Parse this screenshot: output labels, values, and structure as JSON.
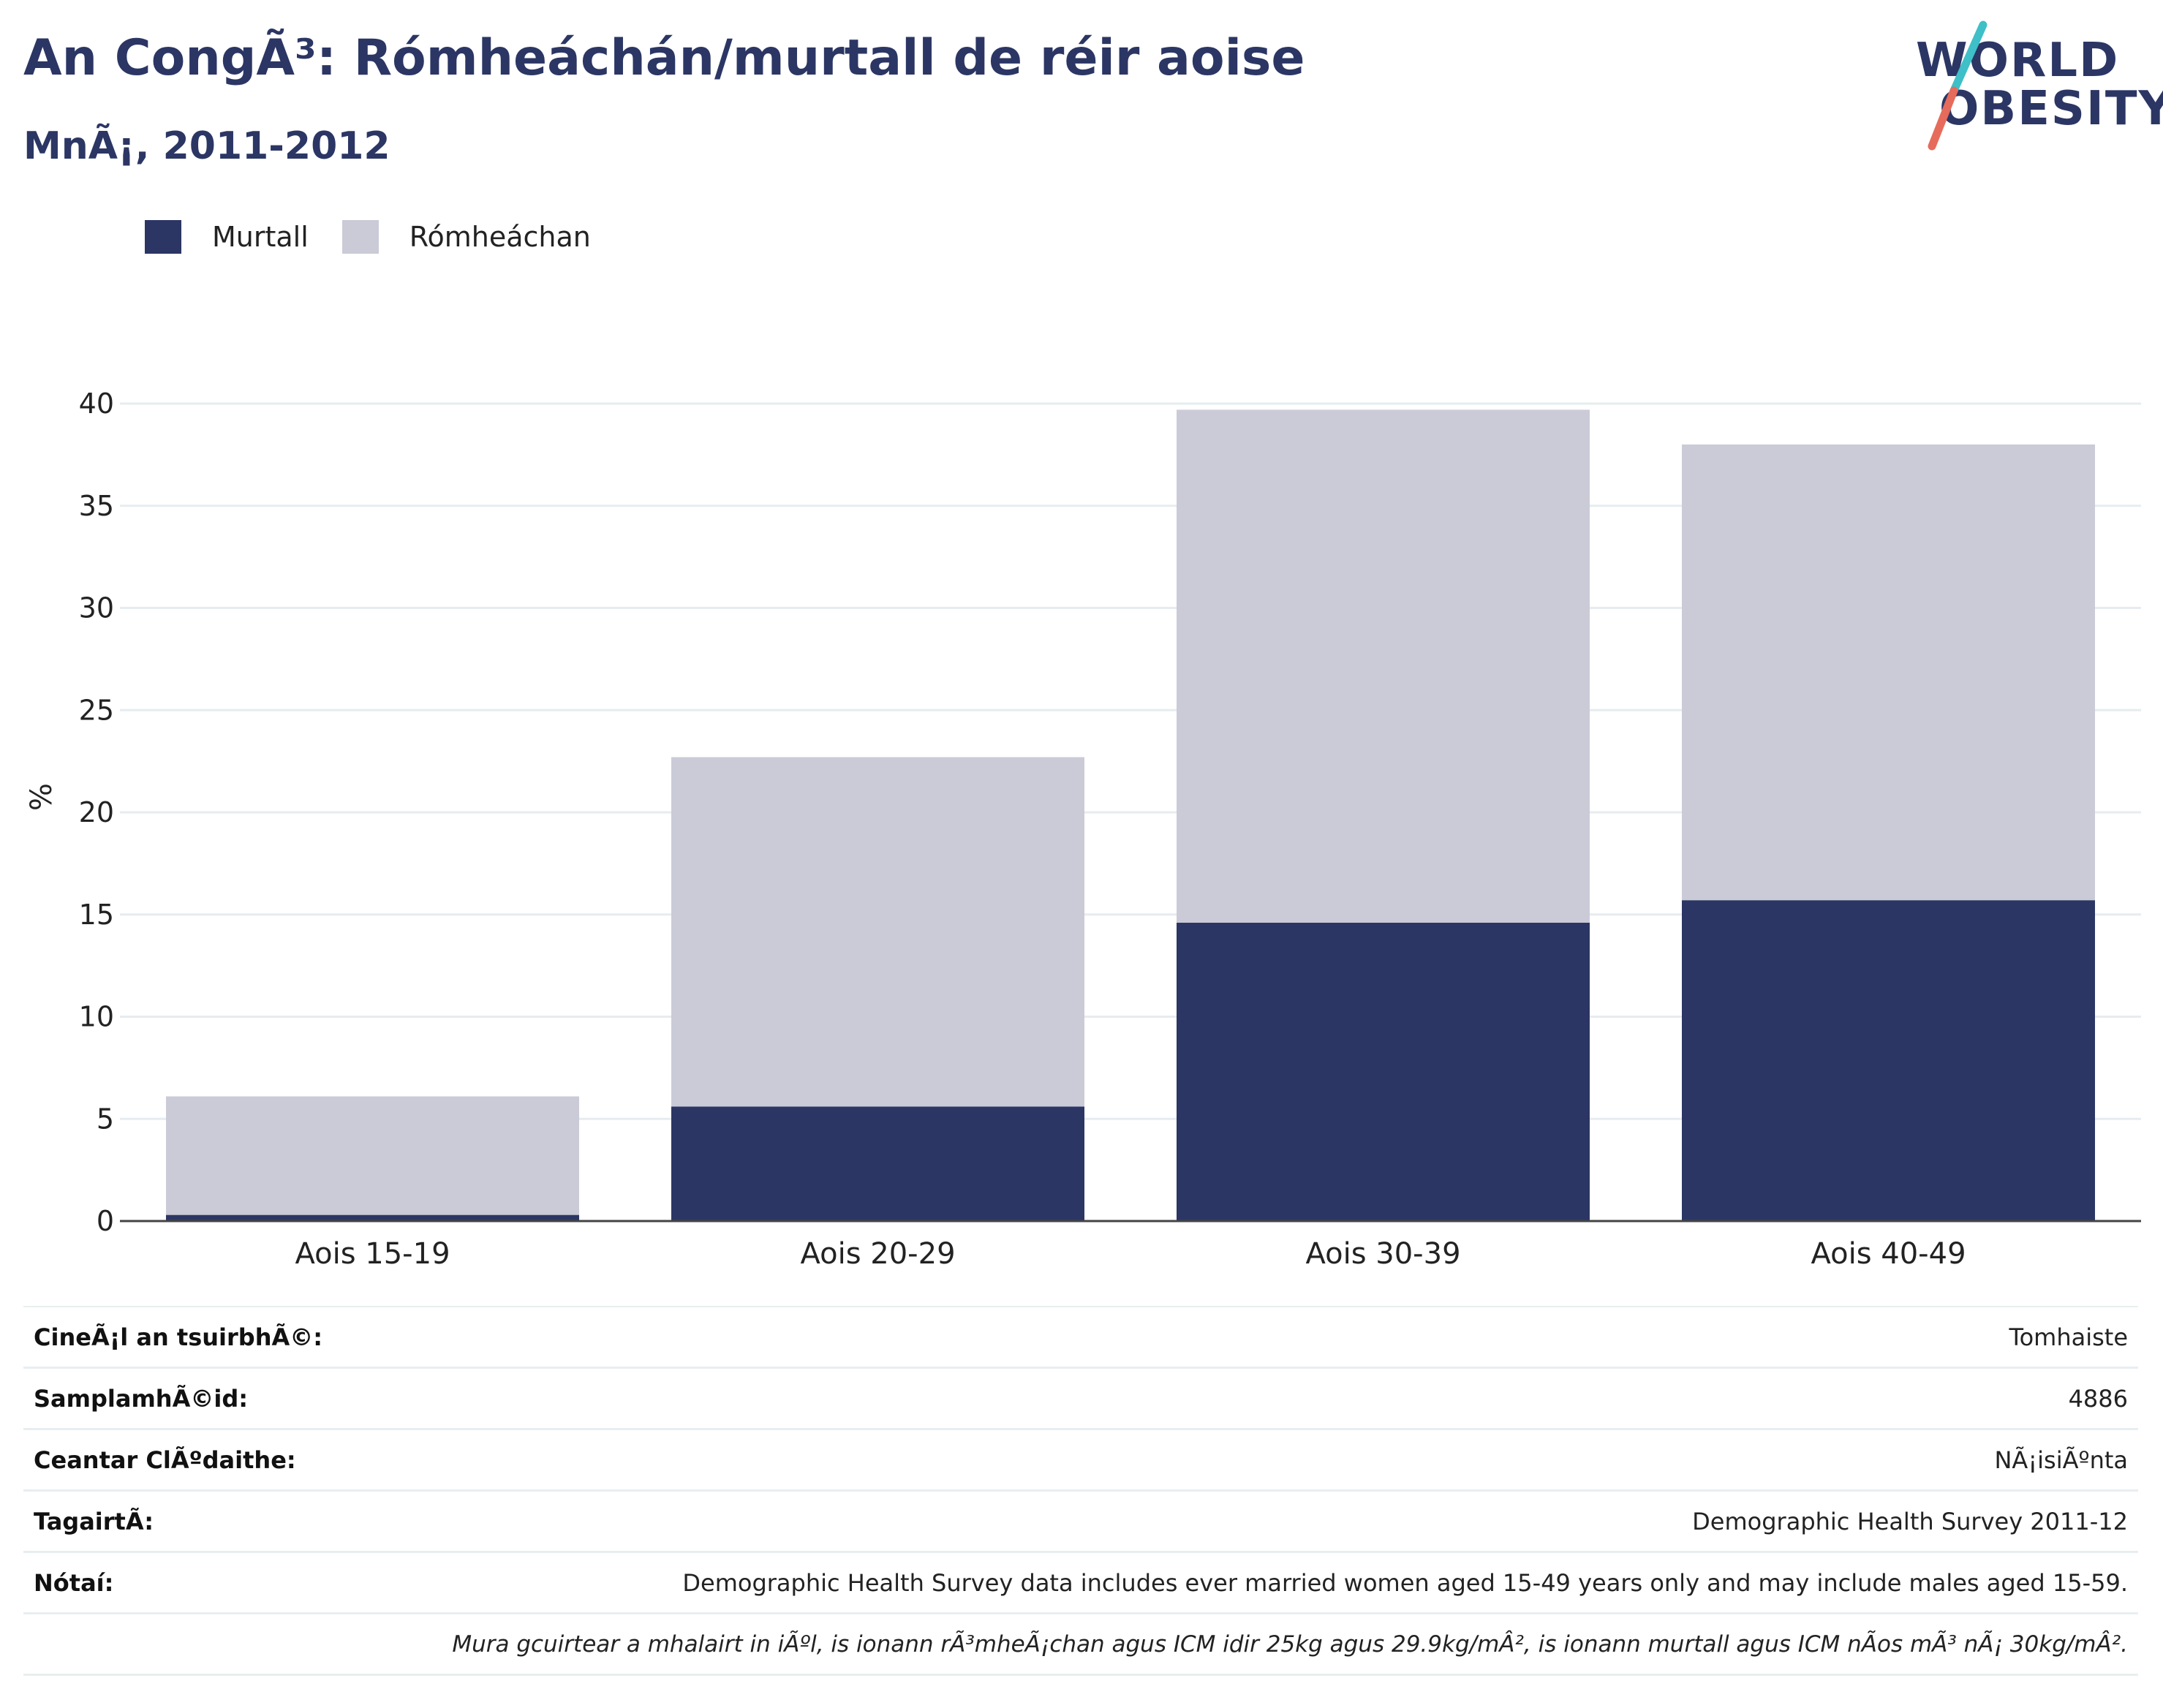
{
  "header": {
    "title": "An CongÃ³: Rómheáchán/murtall de réir aoise",
    "subtitle": "MnÃ¡, 2011-2012"
  },
  "logo": {
    "line1": "WORLD",
    "line2": "OBESITY"
  },
  "legend": {
    "items": [
      {
        "label": "Murtall",
        "color": "#2b3664"
      },
      {
        "label": "Rómheáchan",
        "color": "#cacbd7"
      }
    ]
  },
  "chart_data": {
    "type": "bar",
    "stacked": true,
    "categories": [
      "Aois 15-19",
      "Aois 20-29",
      "Aois 30-39",
      "Aois 40-49"
    ],
    "series": [
      {
        "name": "Murtall",
        "color": "#2b3664",
        "values": [
          0.3,
          5.6,
          14.6,
          15.7
        ]
      },
      {
        "name": "Rómheáchan",
        "color": "#cacbd7",
        "values": [
          5.8,
          17.1,
          25.1,
          22.3
        ]
      }
    ],
    "ylabel": "%",
    "xlabel": "",
    "ylim": [
      0,
      40
    ],
    "yticks": [
      0,
      5,
      10,
      15,
      20,
      25,
      30,
      35,
      40
    ],
    "grid": true,
    "legend_position": "top-left"
  },
  "info_table": {
    "rows": [
      {
        "label": "CineÃ¡l an tsuirbhÃ©:",
        "value": "Tomhaiste"
      },
      {
        "label": "SamplamhÃ©id:",
        "value": "4886"
      },
      {
        "label": "Ceantar ClÃºdaithe:",
        "value": "NÃ¡isiÃºnta"
      },
      {
        "label": "TagairtÃ:",
        "value": "Demographic Health Survey 2011-12"
      },
      {
        "label": "Nótaí:",
        "value": "Demographic Health Survey data includes ever married women aged 15-49 years only and may include males aged 15-59."
      }
    ],
    "footnote": "Mura gcuirtear a mhalairt in iÃºl, is ionann rÃ³mheÃ¡chan agus ICM idir 25kg agus 29.9kg/mÂ², is ionann murtall agus ICM nÃos mÃ³ nÃ¡ 30kg/mÂ²."
  }
}
